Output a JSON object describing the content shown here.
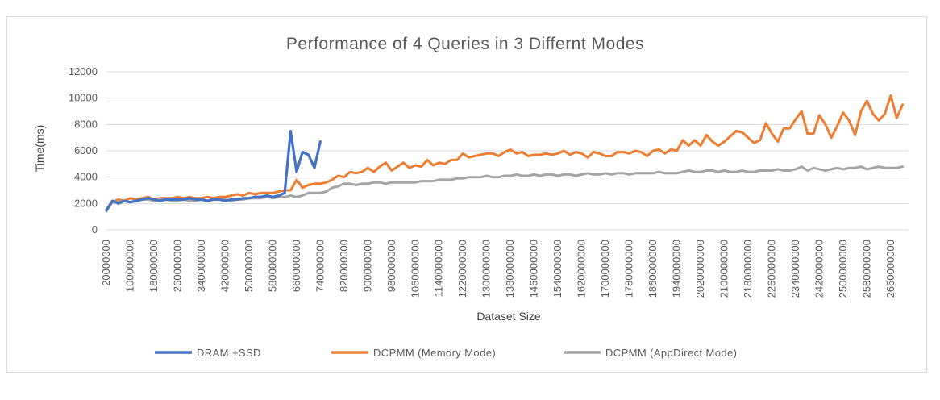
{
  "chart_data": {
    "type": "line",
    "title": "Performance  of 4 Queries in 3 Differnt Modes",
    "xlabel": "Dataset Size",
    "ylabel": "Time(ms)",
    "ylim": [
      0,
      12000
    ],
    "yticks": [
      0,
      2000,
      4000,
      6000,
      8000,
      10000,
      12000
    ],
    "grid": "horizontal",
    "legend_position": "bottom",
    "x_start": 20000000,
    "x_step": 20000000,
    "x_end": 2720000000,
    "xtick_labels": [
      "20000000",
      "100000000",
      "180000000",
      "260000000",
      "340000000",
      "420000000",
      "500000000",
      "580000000",
      "660000000",
      "740000000",
      "820000000",
      "900000000",
      "980000000",
      "1060000000",
      "1140000000",
      "1220000000",
      "1300000000",
      "1380000000",
      "1460000000",
      "1540000000",
      "1620000000",
      "1700000000",
      "1780000000",
      "1860000000",
      "1940000000",
      "2020000000",
      "2100000000",
      "2180000000",
      "2260000000",
      "2340000000",
      "2420000000",
      "2500000000",
      "2580000000",
      "2660000000"
    ],
    "series": [
      {
        "name": "DRAM +SSD",
        "color": "#4472c4",
        "values": [
          1500,
          2200,
          2000,
          2200,
          2100,
          2200,
          2300,
          2400,
          2300,
          2200,
          2300,
          2300,
          2300,
          2300,
          2400,
          2300,
          2300,
          2200,
          2300,
          2300,
          2200,
          2300,
          2300,
          2400,
          2400,
          2500,
          2500,
          2600,
          2500,
          2600,
          2800,
          7500,
          4400,
          5900,
          5700,
          4700,
          6700
        ]
      },
      {
        "name": "DCPMM (Memory Mode)",
        "color": "#ed7d31",
        "values": [
          1500,
          2100,
          2300,
          2200,
          2400,
          2300,
          2400,
          2500,
          2300,
          2400,
          2400,
          2400,
          2500,
          2400,
          2500,
          2400,
          2400,
          2500,
          2400,
          2500,
          2500,
          2600,
          2700,
          2600,
          2800,
          2700,
          2800,
          2800,
          2800,
          2900,
          3000,
          3000,
          3800,
          3200,
          3400,
          3500,
          3500,
          3600,
          3800,
          4100,
          4000,
          4400,
          4300,
          4400,
          4700,
          4400,
          4800,
          5100,
          4500,
          4800,
          5100,
          4700,
          4900,
          4800,
          5300,
          4900,
          5100,
          5000,
          5300,
          5300,
          5800,
          5500,
          5600,
          5700,
          5800,
          5800,
          5600,
          5900,
          6100,
          5800,
          5900,
          5600,
          5700,
          5700,
          5800,
          5700,
          5800,
          6000,
          5700,
          5900,
          5800,
          5500,
          5900,
          5800,
          5600,
          5600,
          5900,
          5900,
          5800,
          6000,
          5900,
          5600,
          6000,
          6100,
          5800,
          6100,
          6000,
          6800,
          6400,
          6800,
          6400,
          7200,
          6700,
          6400,
          6700,
          7100,
          7500,
          7400,
          7000,
          6600,
          6800,
          8100,
          7300,
          6700,
          7700,
          7700,
          8400,
          9000,
          7300,
          7300,
          8700,
          8000,
          7000,
          7900,
          8900,
          8300,
          7200,
          9000,
          9800,
          8800,
          8300,
          8800,
          10200,
          8500,
          9500
        ]
      },
      {
        "name": "DCPMM (AppDirect Mode)",
        "color": "#a5a5a5",
        "values": [
          1400,
          2200,
          2100,
          2200,
          2100,
          2200,
          2300,
          2300,
          2200,
          2300,
          2300,
          2200,
          2200,
          2300,
          2200,
          2200,
          2300,
          2200,
          2300,
          2300,
          2300,
          2200,
          2300,
          2300,
          2400,
          2400,
          2400,
          2500,
          2400,
          2500,
          2500,
          2600,
          2500,
          2600,
          2800,
          2800,
          2800,
          2900,
          3200,
          3300,
          3500,
          3500,
          3400,
          3500,
          3500,
          3600,
          3600,
          3500,
          3600,
          3600,
          3600,
          3600,
          3600,
          3700,
          3700,
          3700,
          3800,
          3800,
          3800,
          3900,
          3900,
          4000,
          4000,
          4000,
          4100,
          4000,
          4000,
          4100,
          4100,
          4200,
          4100,
          4100,
          4200,
          4100,
          4200,
          4200,
          4100,
          4200,
          4200,
          4100,
          4200,
          4300,
          4200,
          4200,
          4300,
          4200,
          4300,
          4300,
          4200,
          4300,
          4300,
          4300,
          4300,
          4400,
          4300,
          4300,
          4300,
          4400,
          4500,
          4400,
          4400,
          4500,
          4500,
          4400,
          4500,
          4400,
          4400,
          4500,
          4400,
          4400,
          4500,
          4500,
          4500,
          4600,
          4500,
          4500,
          4600,
          4800,
          4500,
          4700,
          4600,
          4500,
          4600,
          4700,
          4600,
          4700,
          4700,
          4800,
          4600,
          4700,
          4800,
          4700,
          4700,
          4700,
          4800
        ]
      }
    ]
  }
}
